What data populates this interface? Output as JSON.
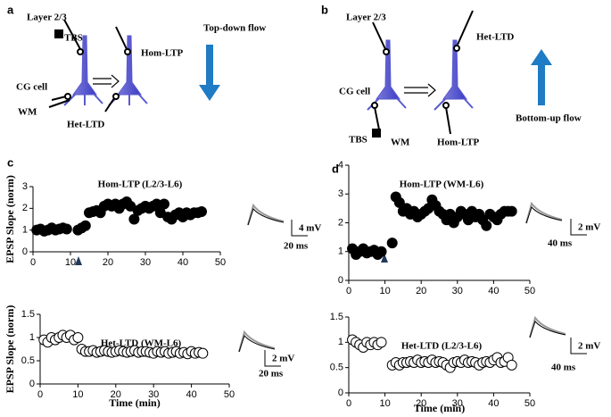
{
  "panels": {
    "a": {
      "label": "a",
      "layer": "Layer 2/3",
      "tbs": "TBS",
      "flow": "Top-down flow",
      "hom": "Hom-LTP",
      "cg": "CG cell",
      "wm": "WM",
      "het": "Het-LTD"
    },
    "b": {
      "label": "b",
      "layer": "Layer 2/3",
      "het": "Het-LTD",
      "cg": "CG cell",
      "flow": "Bottom-up flow",
      "tbs": "TBS",
      "wm": "WM",
      "hom": "Hom-LTP"
    },
    "c": {
      "label": "c"
    },
    "d": {
      "label": "d"
    }
  },
  "chart_data": [
    {
      "type": "scatter",
      "title": "Hom-LTP (L2/3-L6)",
      "ylabel": "EPSP Slope (norm)",
      "marker": "filled",
      "scale_labels": [
        "4 mV",
        "20 ms"
      ],
      "x": [
        1,
        2,
        3,
        4,
        5,
        6,
        7,
        8,
        9,
        12,
        13,
        14,
        15,
        16,
        17,
        18,
        19,
        20,
        21,
        22,
        23,
        24,
        25,
        26,
        27,
        28,
        29,
        30,
        31,
        32,
        33,
        34,
        35,
        36,
        37,
        38,
        39,
        40,
        41,
        42,
        43,
        44,
        45
      ],
      "values": [
        1.0,
        1.05,
        0.95,
        1.0,
        1.1,
        1.0,
        1.05,
        1.1,
        1.05,
        1.0,
        1.1,
        1.2,
        1.8,
        1.85,
        1.9,
        1.8,
        2.1,
        2.2,
        2.1,
        2.2,
        2.0,
        2.2,
        2.3,
        2.1,
        1.5,
        1.9,
        2.0,
        2.1,
        2.0,
        2.1,
        2.2,
        1.8,
        2.2,
        1.6,
        1.5,
        1.7,
        1.8,
        1.6,
        1.8,
        1.7,
        1.8,
        1.8,
        1.85
      ],
      "xlim": [
        0,
        50
      ],
      "ylim": [
        0,
        3
      ],
      "xticks": [
        0,
        10,
        20,
        30,
        40,
        50
      ],
      "yticks": [
        0,
        1,
        2,
        3
      ]
    },
    {
      "type": "scatter",
      "title": "Het-LTD (WM-L6)",
      "ylabel": "EPSP Slope (norm)",
      "xlabel": "Time (min)",
      "marker": "open",
      "scale_labels": [
        "2 mV",
        "20 ms"
      ],
      "x": [
        1,
        2,
        3,
        4,
        5,
        6,
        7,
        8,
        9,
        10,
        11,
        12,
        13,
        14,
        15,
        16,
        17,
        18,
        19,
        20,
        21,
        22,
        23,
        24,
        25,
        26,
        27,
        28,
        29,
        30,
        31,
        32,
        33,
        34,
        35,
        36,
        37,
        38,
        39,
        40,
        41,
        42,
        43
      ],
      "values": [
        0.95,
        0.9,
        1.0,
        0.95,
        1.0,
        1.05,
        1.0,
        1.05,
        0.95,
        1.0,
        0.75,
        0.7,
        0.7,
        0.72,
        0.68,
        0.7,
        0.72,
        0.7,
        0.68,
        0.7,
        0.72,
        0.7,
        0.68,
        0.7,
        0.72,
        0.68,
        0.7,
        0.7,
        0.68,
        0.66,
        0.7,
        0.68,
        0.7,
        0.66,
        0.68,
        0.7,
        0.66,
        0.68,
        0.65,
        0.7,
        0.66,
        0.68,
        0.66
      ],
      "xlim": [
        0,
        50
      ],
      "ylim": [
        0,
        1.5
      ],
      "xticks": [
        0,
        10,
        20,
        30,
        40,
        50
      ],
      "yticks": [
        0,
        0.5,
        1,
        1.5
      ]
    },
    {
      "type": "scatter",
      "title": "Hom-LTP (WM-L6)",
      "marker": "filled",
      "scale_labels": [
        "2 mV",
        "40 ms"
      ],
      "x": [
        1,
        2,
        3,
        4,
        5,
        6,
        7,
        8,
        9,
        12,
        13,
        14,
        15,
        16,
        17,
        18,
        19,
        20,
        21,
        22,
        23,
        24,
        25,
        26,
        27,
        28,
        29,
        30,
        31,
        32,
        33,
        34,
        35,
        36,
        37,
        38,
        39,
        40,
        41,
        42,
        43,
        44,
        45
      ],
      "values": [
        1.1,
        0.9,
        1.0,
        1.1,
        0.95,
        1.0,
        1.05,
        0.9,
        1.0,
        1.3,
        2.9,
        2.7,
        2.4,
        2.5,
        2.3,
        2.4,
        2.2,
        2.3,
        2.4,
        2.5,
        2.8,
        2.6,
        2.4,
        2.3,
        2.1,
        2.3,
        2.0,
        2.2,
        2.4,
        2.3,
        2.1,
        2.4,
        2.2,
        2.3,
        2.1,
        1.9,
        2.3,
        2.2,
        2.1,
        2.3,
        2.4,
        2.4,
        2.4
      ],
      "xlim": [
        0,
        50
      ],
      "ylim": [
        0,
        4
      ],
      "xticks": [
        0,
        10,
        20,
        30,
        40,
        50
      ],
      "yticks": [
        0,
        1,
        2,
        3,
        4
      ]
    },
    {
      "type": "scatter",
      "title": "Het-LTD (L2/3-L6)",
      "xlabel": "Time (min)",
      "marker": "open",
      "scale_labels": [
        "2 mV",
        "40 ms"
      ],
      "x": [
        1,
        2,
        3,
        4,
        5,
        6,
        7,
        8,
        9,
        12,
        13,
        14,
        15,
        16,
        17,
        18,
        19,
        20,
        21,
        22,
        23,
        24,
        25,
        26,
        27,
        28,
        29,
        30,
        31,
        32,
        33,
        34,
        35,
        36,
        37,
        38,
        39,
        40,
        41,
        42,
        43,
        44,
        45
      ],
      "values": [
        1.05,
        1.0,
        0.95,
        0.9,
        1.0,
        0.95,
        1.0,
        0.95,
        1.0,
        0.55,
        0.6,
        0.55,
        0.6,
        0.6,
        0.62,
        0.6,
        0.65,
        0.6,
        0.62,
        0.6,
        0.65,
        0.6,
        0.62,
        0.6,
        0.55,
        0.5,
        0.6,
        0.62,
        0.6,
        0.65,
        0.6,
        0.62,
        0.6,
        0.55,
        0.6,
        0.62,
        0.6,
        0.65,
        0.7,
        0.6,
        0.62,
        0.7,
        0.55
      ],
      "xlim": [
        0,
        50
      ],
      "ylim": [
        0,
        1.5
      ],
      "xticks": [
        0,
        10,
        20,
        30,
        40,
        50
      ],
      "yticks": [
        0,
        0.5,
        1,
        1.5
      ]
    }
  ]
}
